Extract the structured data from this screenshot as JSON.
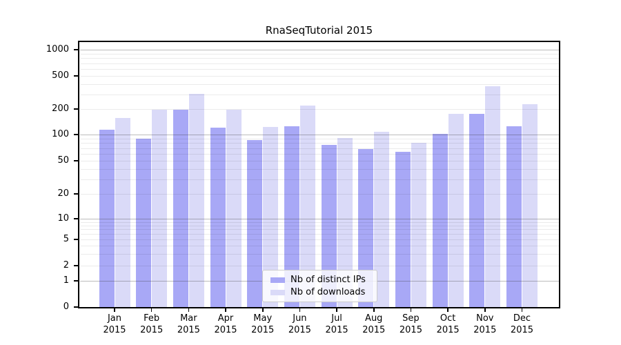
{
  "chart_data": {
    "type": "bar",
    "title": "RnaSeqTutorial 2015",
    "categories": [
      "Jan",
      "Feb",
      "Mar",
      "Apr",
      "May",
      "Jun",
      "Jul",
      "Aug",
      "Sep",
      "Oct",
      "Nov",
      "Dec"
    ],
    "category_year": "2015",
    "series": [
      {
        "name": "Nb of distinct IPs",
        "color": "#a8a8f6",
        "values": [
          114,
          89,
          196,
          121,
          86,
          126,
          76,
          68,
          63,
          102,
          175,
          125
        ]
      },
      {
        "name": "Nb of downloads",
        "color": "#dadaf8",
        "values": [
          157,
          198,
          302,
          196,
          123,
          221,
          91,
          108,
          81,
          174,
          373,
          228
        ]
      }
    ],
    "xlabel": "",
    "ylabel": "",
    "y_axis": {
      "scale": "log (with 0 baseline)",
      "ticks": [
        0,
        1,
        2,
        5,
        10,
        20,
        50,
        100,
        200,
        500,
        1000
      ],
      "ylim": [
        0,
        1000
      ]
    },
    "grid": {
      "horizontal": true,
      "major_at": [
        1,
        10,
        100,
        1000
      ],
      "minor_log_subdivisions": true
    },
    "legend_position": "lower center, inside plot"
  }
}
